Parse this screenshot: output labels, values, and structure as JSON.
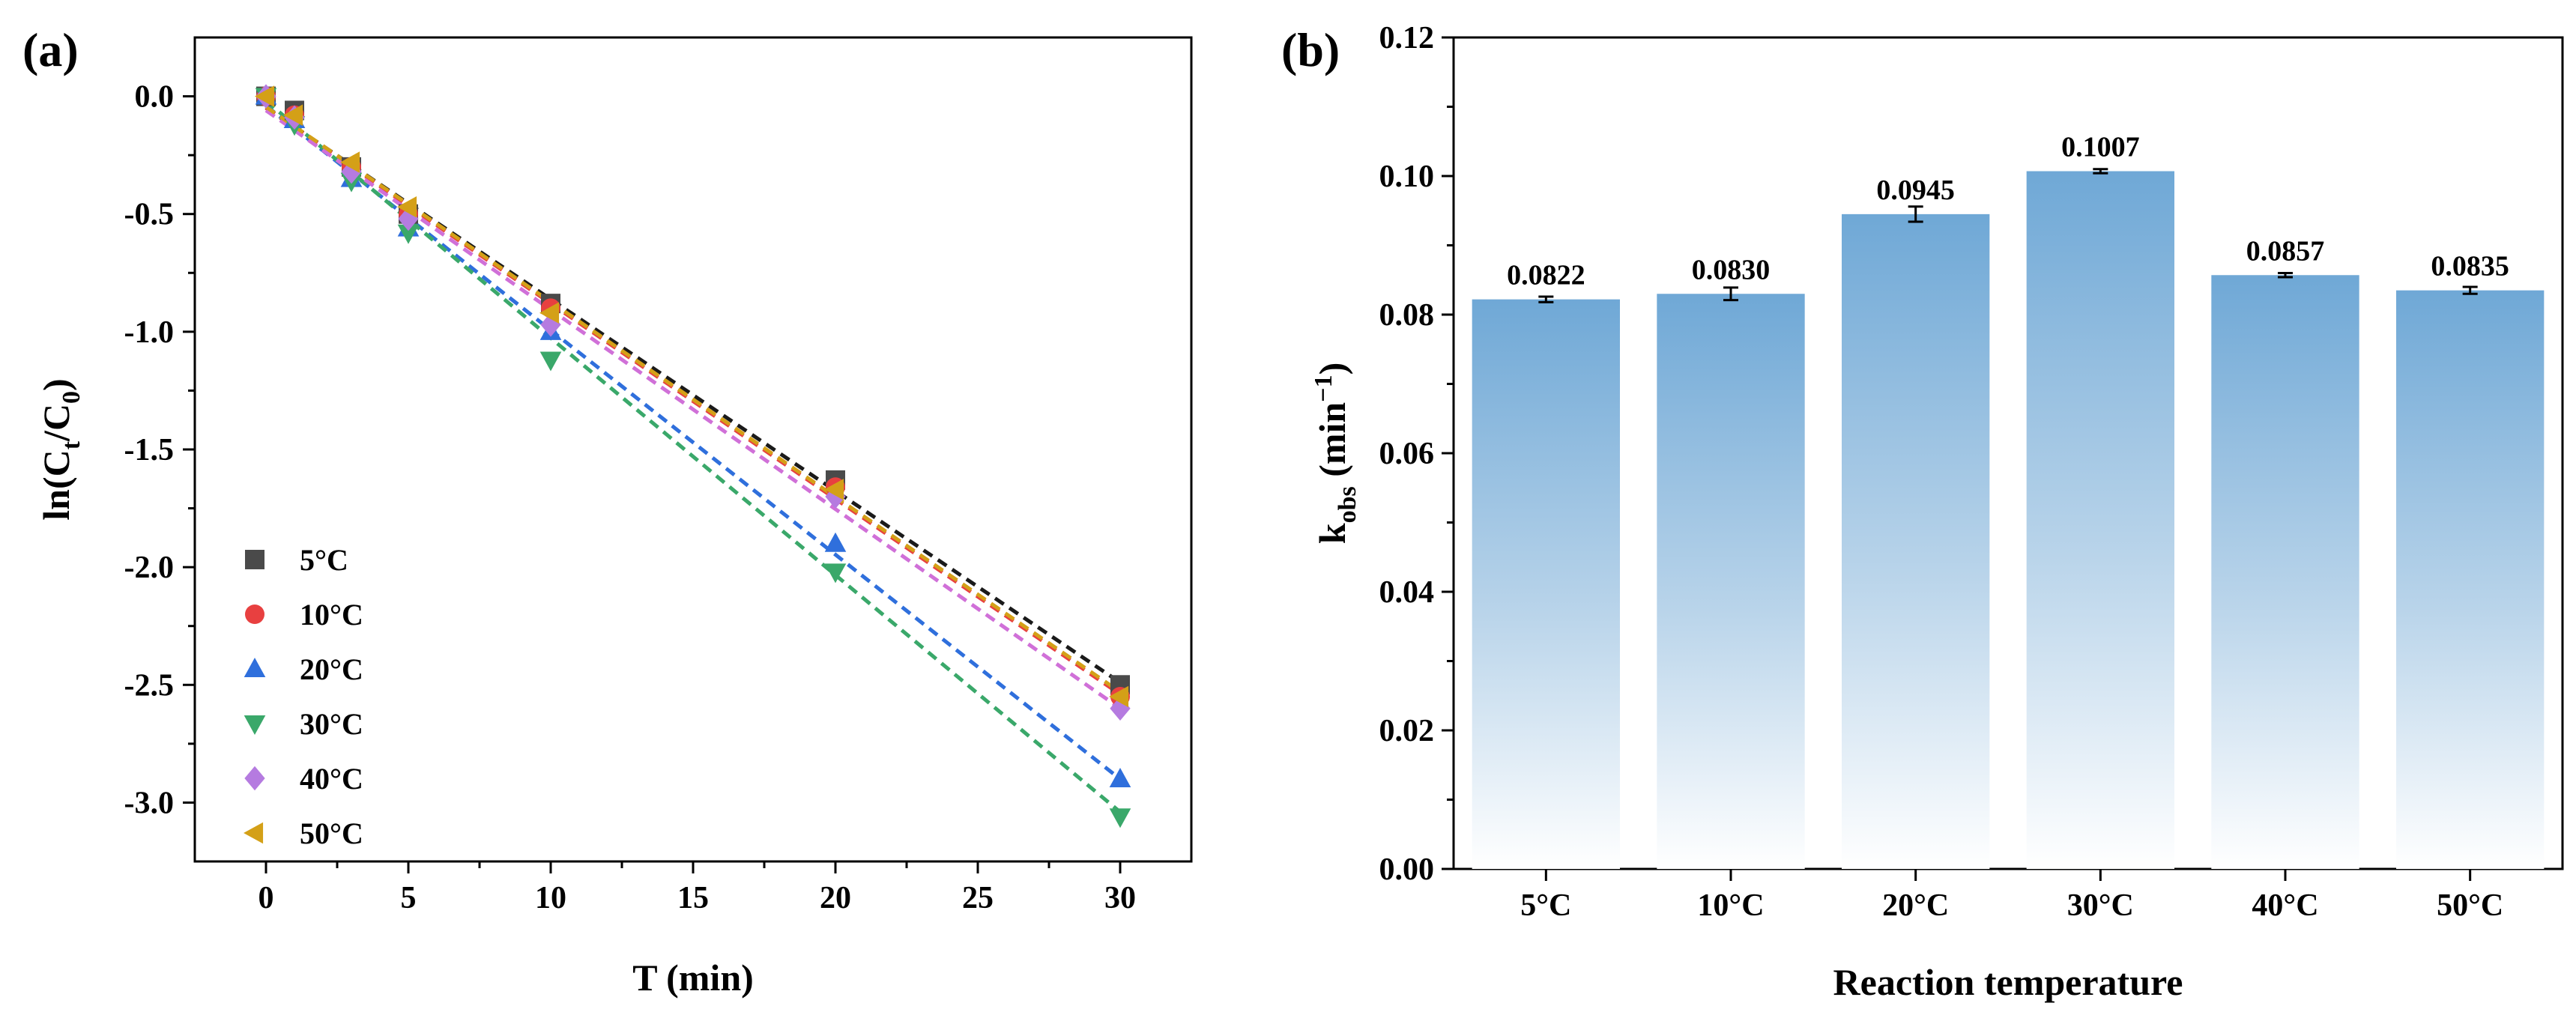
{
  "chart_data": [
    {
      "type": "scatter",
      "panel_label": "(a)",
      "xlabel": "T (min)",
      "ylabel_parts": [
        "ln(C",
        "t",
        "/C",
        "0",
        ")"
      ],
      "xlim": [
        -2.5,
        32.5
      ],
      "ylim": [
        -3.25,
        0.25
      ],
      "xticks": [
        0,
        5,
        10,
        15,
        20,
        25,
        30
      ],
      "yticks": [
        0.0,
        -0.5,
        -1.0,
        -1.5,
        -2.0,
        -2.5,
        -3.0
      ],
      "ytick_labels": [
        "0.0",
        "-0.5",
        "-1.0",
        "-1.5",
        "-2.0",
        "-2.5",
        "-3.0"
      ],
      "legend_position": "bottom-left",
      "series": [
        {
          "name": "5°C",
          "marker": "square",
          "color": "#4a4a4a",
          "fit_color": "#1a1a1a",
          "x": [
            0,
            1,
            3,
            5,
            10,
            20,
            30
          ],
          "y": [
            0.0,
            -0.06,
            -0.3,
            -0.5,
            -0.88,
            -1.63,
            -2.5
          ],
          "fit": [
            0,
            -0.048,
            30,
            -2.49
          ]
        },
        {
          "name": "10°C",
          "marker": "circle",
          "color": "#e84040",
          "fit_color": "#e84040",
          "x": [
            0,
            1,
            3,
            5,
            10,
            20,
            30
          ],
          "y": [
            0.0,
            -0.08,
            -0.3,
            -0.5,
            -0.9,
            -1.66,
            -2.55
          ],
          "fit": [
            0,
            -0.05,
            30,
            -2.54
          ]
        },
        {
          "name": "20°C",
          "marker": "triangle-up",
          "color": "#2f6fdc",
          "fit_color": "#2f6fdc",
          "x": [
            0,
            1,
            3,
            5,
            10,
            20,
            30
          ],
          "y": [
            0.0,
            -0.1,
            -0.35,
            -0.56,
            -1.0,
            -1.9,
            -2.9
          ],
          "fit": [
            0,
            -0.04,
            30,
            -2.9
          ]
        },
        {
          "name": "30°C",
          "marker": "triangle-down",
          "color": "#3aa86a",
          "fit_color": "#3aa86a",
          "x": [
            0,
            1,
            3,
            5,
            10,
            20,
            30
          ],
          "y": [
            0.0,
            -0.12,
            -0.36,
            -0.58,
            -1.12,
            -2.02,
            -3.06
          ],
          "fit": [
            0,
            -0.02,
            30,
            -3.04
          ]
        },
        {
          "name": "40°C",
          "marker": "diamond",
          "color": "#b57be0",
          "fit_color": "#d070d8",
          "x": [
            0,
            1,
            3,
            5,
            10,
            20,
            30
          ],
          "y": [
            0.0,
            -0.09,
            -0.32,
            -0.52,
            -0.97,
            -1.7,
            -2.6
          ],
          "fit": [
            0,
            -0.06,
            30,
            -2.6
          ]
        },
        {
          "name": "50°C",
          "marker": "triangle-left",
          "color": "#d4a017",
          "fit_color": "#d4a017",
          "x": [
            0,
            1,
            3,
            5,
            10,
            20,
            30
          ],
          "y": [
            0.0,
            -0.08,
            -0.28,
            -0.47,
            -0.92,
            -1.67,
            -2.55
          ],
          "fit": [
            0,
            -0.045,
            30,
            -2.53
          ]
        }
      ]
    },
    {
      "type": "bar",
      "panel_label": "(b)",
      "xlabel": "Reaction temperature",
      "ylabel_parts": [
        "k",
        "obs",
        " (min",
        "−1",
        ")"
      ],
      "ylim": [
        0,
        0.12
      ],
      "yticks": [
        0.0,
        0.02,
        0.04,
        0.06,
        0.08,
        0.1,
        0.12
      ],
      "ytick_labels": [
        "0.00",
        "0.02",
        "0.04",
        "0.06",
        "0.08",
        "0.10",
        "0.12"
      ],
      "categories": [
        "5°C",
        "10°C",
        "20°C",
        "30°C",
        "40°C",
        "50°C"
      ],
      "values": [
        0.0822,
        0.083,
        0.0945,
        0.1007,
        0.0857,
        0.0835
      ],
      "value_labels": [
        "0.0822",
        "0.0830",
        "0.0945",
        "0.1007",
        "0.0857",
        "0.0835"
      ],
      "errors": [
        0.0004,
        0.0009,
        0.0011,
        0.0003,
        0.0003,
        0.0005
      ],
      "bar_color_top": "#6fa8d6",
      "bar_color_bottom": "#ffffff"
    }
  ]
}
